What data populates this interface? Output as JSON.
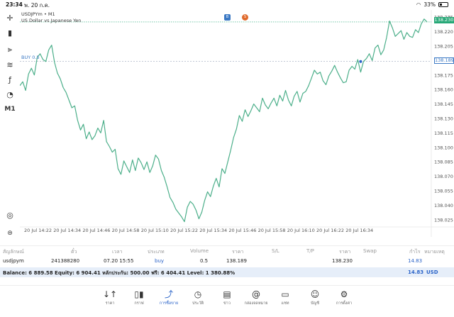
{
  "status": {
    "time": "23:34",
    "date": "พ. 20 ก.ค.",
    "battery": "33%"
  },
  "toolbar": [
    {
      "name": "crosshair-icon",
      "glyph": "✛"
    },
    {
      "name": "candlestick-icon",
      "glyph": "▮"
    },
    {
      "name": "indicators-icon",
      "glyph": "⫸"
    },
    {
      "name": "objects-icon",
      "glyph": "≋"
    },
    {
      "name": "function-icon",
      "glyph": "ƒ"
    },
    {
      "name": "shapes-icon",
      "glyph": "◔"
    },
    {
      "name": "timeframe-label",
      "glyph": "M1"
    }
  ],
  "chart": {
    "symbol": "USDJPYm • M1",
    "description": "US Dollar vs Japanese Yen",
    "buy_label": "BUY 0.5",
    "current_price": "138.230",
    "buy_price": "138.189",
    "one_click_a": "B",
    "one_click_b": "S"
  },
  "chart_data": {
    "type": "line",
    "y_ticks": [
      "138.235",
      "138.220",
      "138.205",
      "138.190",
      "138.175",
      "138.160",
      "138.145",
      "138.130",
      "138.115",
      "138.100",
      "138.085",
      "138.070",
      "138.055",
      "138.040",
      "138.025"
    ],
    "x_ticks": [
      "20 Jul 14:22",
      "20 Jul 14:34",
      "20 Jul 14:46",
      "20 Jul 14:58",
      "20 Jul 15:10",
      "20 Jul 15:22",
      "20 Jul 15:34",
      "20 Jul 15:46",
      "20 Jul 15:58",
      "20 Jul 16:10",
      "20 Jul 16:22",
      "20 Jul 16:34"
    ],
    "ylim": [
      138.0205,
      138.2395
    ],
    "values": [
      138.164,
      138.168,
      138.159,
      138.176,
      138.182,
      138.175,
      138.193,
      138.197,
      138.191,
      138.189,
      138.201,
      138.206,
      138.188,
      138.177,
      138.171,
      138.162,
      138.157,
      138.149,
      138.141,
      138.143,
      138.128,
      138.118,
      138.124,
      138.109,
      138.116,
      138.108,
      138.112,
      138.12,
      138.115,
      138.128,
      138.106,
      138.101,
      138.095,
      138.098,
      138.078,
      138.072,
      138.086,
      138.08,
      138.074,
      138.087,
      138.076,
      138.089,
      138.084,
      138.077,
      138.085,
      138.074,
      138.081,
      138.092,
      138.088,
      138.076,
      138.069,
      138.059,
      138.048,
      138.043,
      138.036,
      138.032,
      138.028,
      138.023,
      138.038,
      138.044,
      138.041,
      138.035,
      138.026,
      138.033,
      138.045,
      138.054,
      138.049,
      138.06,
      138.068,
      138.059,
      138.078,
      138.073,
      138.085,
      138.097,
      138.11,
      138.119,
      138.133,
      138.127,
      138.139,
      138.132,
      138.138,
      138.145,
      138.141,
      138.137,
      138.151,
      138.144,
      138.14,
      138.146,
      138.151,
      138.143,
      138.154,
      138.148,
      138.159,
      138.149,
      138.143,
      138.153,
      138.158,
      138.147,
      138.156,
      138.158,
      138.164,
      138.172,
      138.18,
      138.176,
      138.178,
      138.169,
      138.165,
      138.174,
      138.179,
      138.185,
      138.178,
      138.172,
      138.167,
      138.168,
      138.18,
      138.184,
      138.181,
      138.191,
      138.178,
      138.189,
      138.192,
      138.197,
      138.19,
      138.203,
      138.206,
      138.196,
      138.201,
      138.214,
      138.231,
      138.224,
      138.215,
      138.218,
      138.221,
      138.212,
      138.219,
      138.215,
      138.214,
      138.222,
      138.219,
      138.228,
      138.233,
      138.23
    ]
  },
  "positions": {
    "headers": {
      "symbol": "สัญลักษณ์",
      "ticket": "ตั๋ว",
      "time": "เวลา",
      "type": "ประเภท",
      "volume": "Volume",
      "price": "ราคา",
      "sl": "S/L",
      "tp": "T/P",
      "price2": "ราคา",
      "swap": "Swap",
      "profit": "กำไร",
      "comment": "หมายเหตุ"
    },
    "row": {
      "symbol": "usdjpym",
      "ticket": "241388280",
      "time": "07.20 15:55",
      "type": "buy",
      "volume": "0.5",
      "price": "138.189",
      "sl": "",
      "tp": "",
      "price2": "138.230",
      "swap": "",
      "profit": "14.83",
      "comment": ""
    }
  },
  "balance": {
    "text": "Balance: 6 889.58 Equity: 6 904.41 หลักประกัน: 500.00 ฟรี: 6 404.41 Level: 1 380.88%",
    "profit": "14.83",
    "currency": "USD"
  },
  "nav": [
    {
      "name": "nav-quotes",
      "icon": "↓↑",
      "label": "ราคา"
    },
    {
      "name": "nav-chart",
      "icon": "▯▮",
      "label": "กราฟ"
    },
    {
      "name": "nav-trade",
      "icon": "⤴",
      "label": "การซื้อขาย",
      "active": true
    },
    {
      "name": "nav-history",
      "icon": "◷",
      "label": "ประวัติ"
    },
    {
      "name": "nav-news",
      "icon": "▤",
      "label": "ข่าว"
    },
    {
      "name": "nav-mailbox",
      "icon": "@",
      "label": "กล่องจดหมาย"
    },
    {
      "name": "nav-chat",
      "icon": "▭",
      "label": "แชท"
    },
    {
      "name": "nav-account",
      "icon": "☺",
      "label": "บัญชี"
    },
    {
      "name": "nav-settings",
      "icon": "⚙",
      "label": "การตั้งค่า"
    }
  ],
  "colors": {
    "line": "#4caf8a",
    "accent": "#2a63c8",
    "grid": "#eeeeee"
  }
}
